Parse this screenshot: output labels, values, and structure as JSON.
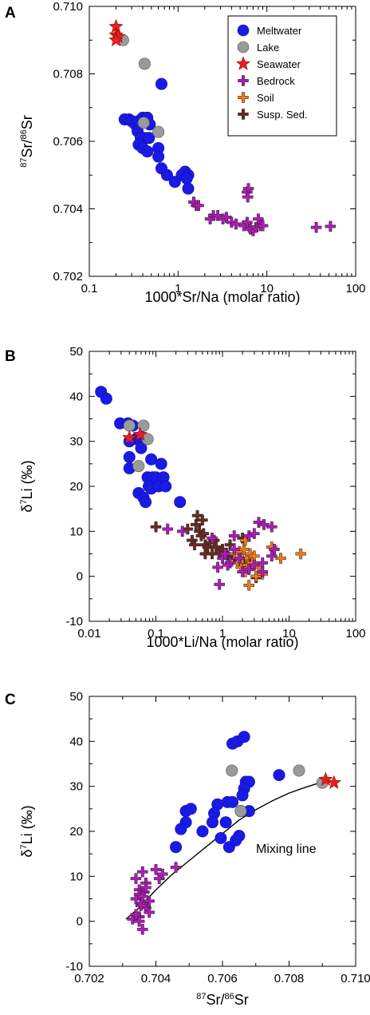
{
  "legend": {
    "entries": [
      {
        "label": "Meltwater",
        "marker": "circle",
        "color": "#1a1ae6"
      },
      {
        "label": "Lake",
        "marker": "circle",
        "color": "#9a9a9a"
      },
      {
        "label": "Seawater",
        "marker": "star",
        "color": "#e81e1e"
      },
      {
        "label": "Bedrock",
        "marker": "plus",
        "color": "#b01bb8"
      },
      {
        "label": "Soil",
        "marker": "plus",
        "color": "#f07a1a"
      },
      {
        "label": "Susp. Sed.",
        "marker": "plus",
        "color": "#6b2a22"
      }
    ]
  },
  "chart_data": [
    {
      "panel": "A",
      "type": "scatter",
      "xscale": "log",
      "xlim": [
        0.1,
        100
      ],
      "ylim": [
        0.702,
        0.71
      ],
      "xticks": [
        "0.1",
        "1",
        "10",
        "100"
      ],
      "yticks": [
        "0.702",
        "0.704",
        "0.706",
        "0.708",
        "0.710"
      ],
      "xlabel": "1000*Sr/Na (molar ratio)",
      "ylabel_pre": "87",
      "ylabel_mid": "Sr/",
      "ylabel_sup2": "86",
      "ylabel_post": "Sr",
      "series": [
        {
          "name": "Meltwater",
          "points": [
            [
              0.25,
              0.70665
            ],
            [
              0.28,
              0.70665
            ],
            [
              0.3,
              0.7066
            ],
            [
              0.33,
              0.7065
            ],
            [
              0.36,
              0.7066
            ],
            [
              0.4,
              0.7067
            ],
            [
              0.42,
              0.7066
            ],
            [
              0.45,
              0.7067
            ],
            [
              0.48,
              0.7065
            ],
            [
              0.35,
              0.7063
            ],
            [
              0.38,
              0.7061
            ],
            [
              0.42,
              0.7061
            ],
            [
              0.47,
              0.7061
            ],
            [
              0.36,
              0.7059
            ],
            [
              0.4,
              0.7058
            ],
            [
              0.6,
              0.7058
            ],
            [
              0.45,
              0.7057
            ],
            [
              0.6,
              0.70555
            ],
            [
              0.65,
              0.7052
            ],
            [
              0.75,
              0.705
            ],
            [
              0.92,
              0.7048
            ],
            [
              1.1,
              0.705
            ],
            [
              1.2,
              0.7051
            ],
            [
              1.3,
              0.705
            ],
            [
              1.25,
              0.7049
            ],
            [
              1.3,
              0.7046
            ],
            [
              0.65,
              0.7077
            ]
          ]
        },
        {
          "name": "Lake",
          "points": [
            [
              0.24,
              0.709
            ],
            [
              0.42,
              0.7083
            ],
            [
              0.41,
              0.70655
            ],
            [
              0.6,
              0.70628
            ]
          ]
        },
        {
          "name": "Seawater",
          "points": [
            [
              0.2,
              0.7094
            ],
            [
              0.2,
              0.70915
            ],
            [
              0.21,
              0.7091
            ],
            [
              0.2,
              0.709
            ]
          ]
        },
        {
          "name": "Bedrock",
          "points": [
            [
              1.5,
              0.7042
            ],
            [
              1.6,
              0.7041
            ],
            [
              1.7,
              0.7041
            ],
            [
              2.3,
              0.7037
            ],
            [
              2.5,
              0.7038
            ],
            [
              2.8,
              0.7038
            ],
            [
              3.2,
              0.7037
            ],
            [
              3.5,
              0.70375
            ],
            [
              4,
              0.7036
            ],
            [
              4.5,
              0.70355
            ],
            [
              5.5,
              0.7035
            ],
            [
              6,
              0.7036
            ],
            [
              6.5,
              0.7034
            ],
            [
              7,
              0.70335
            ],
            [
              7.5,
              0.70345
            ],
            [
              8,
              0.7037
            ],
            [
              8.5,
              0.7035
            ],
            [
              9,
              0.7035
            ],
            [
              6,
              0.7045
            ],
            [
              6.2,
              0.7046
            ],
            [
              6.1,
              0.70435
            ],
            [
              36,
              0.70345
            ],
            [
              52,
              0.70348
            ]
          ]
        },
        {
          "name": "Soil",
          "points": []
        },
        {
          "name": "Susp. Sed.",
          "points": []
        }
      ]
    },
    {
      "panel": "B",
      "type": "scatter",
      "xscale": "log",
      "xlim": [
        0.01,
        100
      ],
      "ylim": [
        -10,
        50
      ],
      "xticks": [
        "0.01",
        "0.1",
        "1",
        "10",
        "100"
      ],
      "yticks": [
        "-10",
        "0",
        "10",
        "20",
        "30",
        "40",
        "50"
      ],
      "xlabel": "1000*Li/Na (molar ratio)",
      "ylabel_pre": "δ",
      "ylabel_sup": "7",
      "ylabel_post": "Li (‰)",
      "series": [
        {
          "name": "Meltwater",
          "points": [
            [
              0.015,
              41
            ],
            [
              0.018,
              39.5
            ],
            [
              0.029,
              34
            ],
            [
              0.038,
              34
            ],
            [
              0.045,
              33.5
            ],
            [
              0.06,
              31
            ],
            [
              0.065,
              30.5
            ],
            [
              0.05,
              30.5
            ],
            [
              0.04,
              30
            ],
            [
              0.06,
              28.5
            ],
            [
              0.04,
              26.5
            ],
            [
              0.04,
              24
            ],
            [
              0.085,
              26
            ],
            [
              0.12,
              25
            ],
            [
              0.075,
              22
            ],
            [
              0.09,
              22
            ],
            [
              0.1,
              22
            ],
            [
              0.13,
              22
            ],
            [
              0.078,
              20
            ],
            [
              0.085,
              19.5
            ],
            [
              0.11,
              20
            ],
            [
              0.14,
              20
            ],
            [
              0.055,
              18.5
            ],
            [
              0.065,
              17.5
            ],
            [
              0.07,
              16.5
            ],
            [
              0.23,
              16.5
            ]
          ]
        },
        {
          "name": "Lake",
          "points": [
            [
              0.04,
              33.5
            ],
            [
              0.065,
              33.5
            ],
            [
              0.075,
              30.5
            ],
            [
              0.055,
              24.5
            ]
          ]
        },
        {
          "name": "Seawater",
          "points": [
            [
              0.04,
              30.8
            ],
            [
              0.058,
              31.5
            ]
          ]
        },
        {
          "name": "Bedrock",
          "points": [
            [
              0.15,
              10.5
            ],
            [
              0.25,
              10
            ],
            [
              0.7,
              8.5
            ],
            [
              1.0,
              4
            ],
            [
              1.1,
              5
            ],
            [
              1.3,
              3
            ],
            [
              0.85,
              2
            ],
            [
              0.9,
              -1.8
            ],
            [
              1.5,
              9
            ],
            [
              2.5,
              9
            ],
            [
              3,
              9.5
            ],
            [
              3.5,
              12
            ],
            [
              4.2,
              11.5
            ],
            [
              5.5,
              11
            ],
            [
              6,
              6
            ],
            [
              5.5,
              4.5
            ],
            [
              4,
              3
            ],
            [
              3,
              2.5
            ],
            [
              2.5,
              1.5
            ],
            [
              2,
              1
            ],
            [
              4,
              1
            ],
            [
              1.2,
              2.5
            ],
            [
              1.8,
              4
            ],
            [
              1.5,
              6
            ]
          ]
        },
        {
          "name": "Soil",
          "points": [
            [
              1.5,
              5
            ],
            [
              1.7,
              3
            ],
            [
              1.8,
              5.5
            ],
            [
              1.9,
              2
            ],
            [
              2,
              4
            ],
            [
              2.1,
              6
            ],
            [
              2.2,
              1
            ],
            [
              2.3,
              4
            ],
            [
              2.4,
              2.5
            ],
            [
              2.5,
              -2
            ],
            [
              2.6,
              5
            ],
            [
              2.8,
              3
            ],
            [
              3,
              4.5
            ],
            [
              3.2,
              0
            ],
            [
              3.5,
              2
            ],
            [
              4,
              0.5
            ],
            [
              5.5,
              6.5
            ],
            [
              7.5,
              4
            ],
            [
              15,
              5
            ],
            [
              2.2,
              8
            ]
          ]
        },
        {
          "name": "Susp. Sed.",
          "points": [
            [
              0.1,
              11
            ],
            [
              0.3,
              10.5
            ],
            [
              0.35,
              8
            ],
            [
              0.4,
              11.5
            ],
            [
              0.42,
              13.5
            ],
            [
              0.45,
              10
            ],
            [
              0.48,
              9
            ],
            [
              0.5,
              12.5
            ],
            [
              0.52,
              9.5
            ],
            [
              0.55,
              7
            ],
            [
              0.6,
              6.5
            ],
            [
              0.65,
              7.5
            ],
            [
              0.7,
              5
            ],
            [
              0.75,
              8
            ],
            [
              0.8,
              6.5
            ],
            [
              0.9,
              5
            ],
            [
              1.0,
              6
            ],
            [
              1.2,
              4.5
            ],
            [
              1.5,
              4
            ],
            [
              1.8,
              3.5
            ],
            [
              2.0,
              8.5
            ],
            [
              2.3,
              3
            ],
            [
              2.6,
              3
            ],
            [
              2.8,
              3
            ],
            [
              3.2,
              -0.3
            ],
            [
              1.3,
              7
            ],
            [
              0.55,
              5
            ],
            [
              0.38,
              7
            ]
          ]
        }
      ]
    },
    {
      "panel": "C",
      "type": "scatter",
      "xlim": [
        0.702,
        0.71
      ],
      "ylim": [
        -10,
        50
      ],
      "xticks": [
        "0.702",
        "0.704",
        "0.706",
        "0.708",
        "0.710"
      ],
      "yticks": [
        "-10",
        "0",
        "10",
        "20",
        "30",
        "40",
        "50"
      ],
      "xlabel_pre": "87",
      "xlabel_mid": "Sr/",
      "xlabel_sup2": "86",
      "xlabel_post": "Sr",
      "ylabel_pre": "δ",
      "ylabel_sup": "7",
      "ylabel_post": "Li (‰)",
      "annotation": "Mixing line",
      "mixing_line": [
        [
          0.7031,
          0.5
        ],
        [
          0.7035,
          3
        ],
        [
          0.704,
          7
        ],
        [
          0.7045,
          10.5
        ],
        [
          0.705,
          13.5
        ],
        [
          0.7055,
          16.5
        ],
        [
          0.706,
          19.5
        ],
        [
          0.7065,
          22.5
        ],
        [
          0.707,
          24.8
        ],
        [
          0.7075,
          26.8
        ],
        [
          0.708,
          28.5
        ],
        [
          0.7085,
          29.8
        ],
        [
          0.709,
          31
        ]
      ],
      "series": [
        {
          "name": "Meltwater",
          "points": [
            [
              0.7063,
              39.5
            ],
            [
              0.70645,
              40
            ],
            [
              0.70665,
              41
            ],
            [
              0.7067,
              31
            ],
            [
              0.7068,
              31
            ],
            [
              0.70665,
              29.5
            ],
            [
              0.7066,
              28
            ],
            [
              0.70615,
              26.5
            ],
            [
              0.7063,
              26.5
            ],
            [
              0.70585,
              26
            ],
            [
              0.70655,
              24.5
            ],
            [
              0.70575,
              24
            ],
            [
              0.7068,
              24.5
            ],
            [
              0.7061,
              22
            ],
            [
              0.7054,
              20
            ],
            [
              0.7057,
              22
            ],
            [
              0.7049,
              22
            ],
            [
              0.70475,
              20.5
            ],
            [
              0.7065,
              19
            ],
            [
              0.70595,
              18.5
            ],
            [
              0.7049,
              24.5
            ],
            [
              0.70505,
              25
            ],
            [
              0.7062,
              16.5
            ],
            [
              0.7046,
              16.5
            ],
            [
              0.7064,
              18
            ],
            [
              0.7077,
              32.5
            ]
          ]
        },
        {
          "name": "Lake",
          "points": [
            [
              0.709,
              30.8
            ],
            [
              0.7083,
              33.5
            ],
            [
              0.70628,
              33.5
            ],
            [
              0.70655,
              24.5
            ]
          ]
        },
        {
          "name": "Seawater",
          "points": [
            [
              0.7091,
              31.5
            ],
            [
              0.70935,
              30.8
            ]
          ]
        },
        {
          "name": "Bedrock",
          "points": [
            [
              0.7041,
              9.5
            ],
            [
              0.7042,
              10.5
            ],
            [
              0.7037,
              8.5
            ],
            [
              0.7036,
              11
            ],
            [
              0.7034,
              9.5
            ],
            [
              0.7035,
              7
            ],
            [
              0.7034,
              5
            ],
            [
              0.7035,
              6
            ],
            [
              0.7036,
              4
            ],
            [
              0.7037,
              3
            ],
            [
              0.7038,
              2
            ],
            [
              0.7035,
              1
            ],
            [
              0.7033,
              0.5
            ],
            [
              0.7034,
              1.5
            ],
            [
              0.7036,
              -1.8
            ],
            [
              0.7035,
              0
            ],
            [
              0.70355,
              3.5
            ],
            [
              0.70365,
              6.5
            ],
            [
              0.7046,
              12
            ],
            [
              0.704,
              11.5
            ],
            [
              0.7037,
              7.5
            ],
            [
              0.7036,
              5.5
            ],
            [
              0.7038,
              4.5
            ]
          ]
        },
        {
          "name": "Soil",
          "points": []
        },
        {
          "name": "Susp. Sed.",
          "points": []
        }
      ]
    }
  ]
}
